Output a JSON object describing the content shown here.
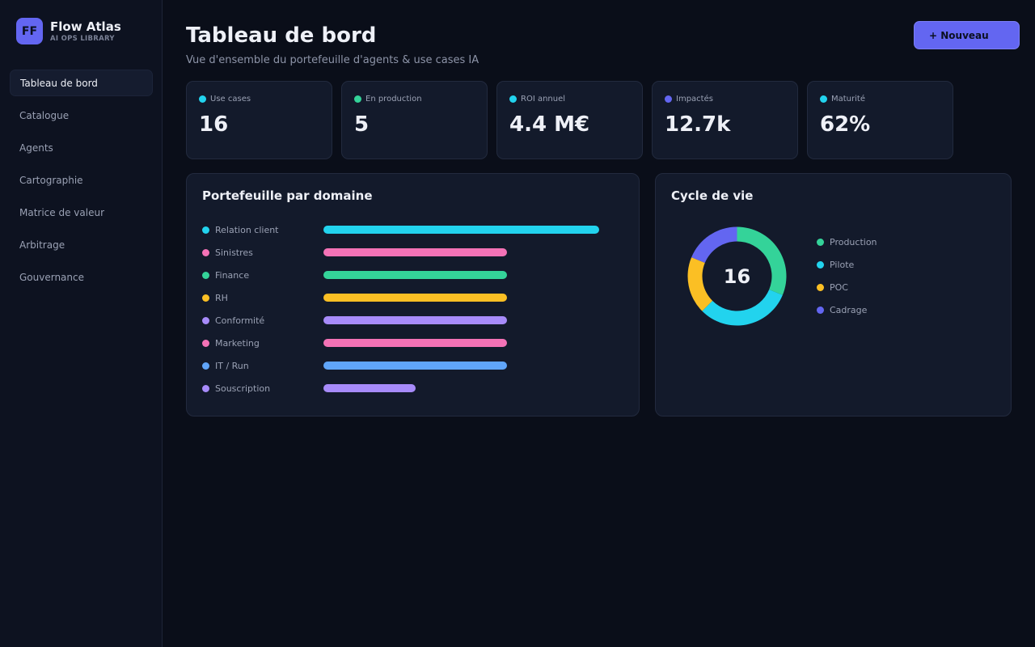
{
  "brand": {
    "logo_text": "FF",
    "name": "Flow Atlas",
    "subtitle": "AI OPS LIBRARY"
  },
  "nav": {
    "items": [
      {
        "label": "Tableau de bord",
        "active": true
      },
      {
        "label": "Catalogue"
      },
      {
        "label": "Agents"
      },
      {
        "label": "Cartographie"
      },
      {
        "label": "Matrice de valeur"
      },
      {
        "label": "Arbitrage"
      },
      {
        "label": "Gouvernance"
      }
    ]
  },
  "header": {
    "title": "Tableau de bord",
    "subtitle": "Vue d'ensemble du portefeuille d'agents & use cases IA",
    "new_button": "+ Nouveau"
  },
  "kpis": [
    {
      "label": "Use cases",
      "value": "16",
      "color": "#22d3ee"
    },
    {
      "label": "En production",
      "value": "5",
      "color": "#34d399"
    },
    {
      "label": "ROI annuel",
      "value": "4.4 M€",
      "color": "#22d3ee"
    },
    {
      "label": "Impactés",
      "value": "12.7k",
      "color": "#6366f1"
    },
    {
      "label": "Maturité",
      "value": "62%",
      "color": "#22d3ee"
    }
  ],
  "portfolio": {
    "title": "Portefeuille par domaine"
  },
  "lifecycle": {
    "title": "Cycle de vie",
    "total": "16"
  },
  "chart_data": [
    {
      "type": "bar",
      "orientation": "horizontal",
      "categories": [
        "Relation client",
        "Sinistres",
        "Finance",
        "RH",
        "Conformité",
        "Marketing",
        "IT / Run",
        "Souscription"
      ],
      "values": [
        3,
        2,
        2,
        2,
        2,
        2,
        2,
        1
      ],
      "colors": [
        "#22d3ee",
        "#f472b6",
        "#34d399",
        "#fbbf24",
        "#a78bfa",
        "#f472b6",
        "#60a5fa",
        "#a78bfa"
      ],
      "max": 3
    },
    {
      "type": "pie",
      "variant": "donut",
      "categories": [
        "Production",
        "Pilote",
        "POC",
        "Cadrage"
      ],
      "values": [
        5,
        5,
        3,
        3
      ],
      "colors": [
        "#34d399",
        "#22d3ee",
        "#fbbf24",
        "#6366f1"
      ]
    }
  ]
}
